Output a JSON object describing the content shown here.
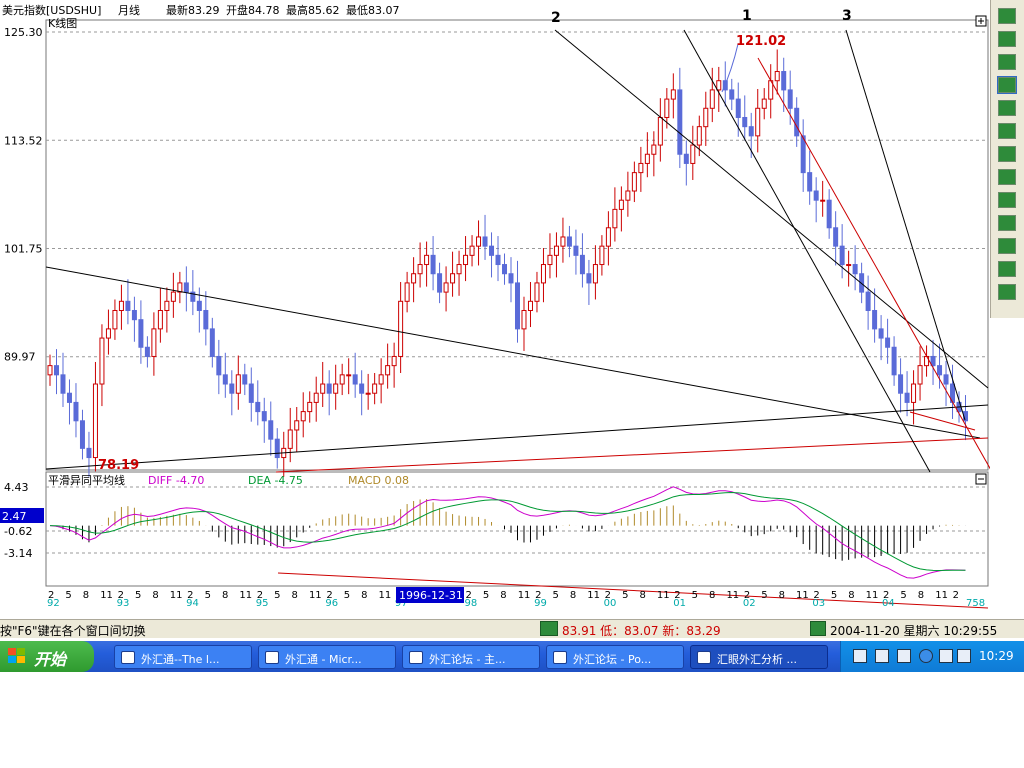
{
  "titlebar": {
    "symbol": "美元指数[USDSHU]",
    "period": "月线",
    "latest": "最新83.29",
    "open": "开盘84.78",
    "high": "最高85.62",
    "low": "最低83.07"
  },
  "main_panel": {
    "label": "K线图",
    "expand_icon": "plus-box-icon",
    "trendline_labels": [
      "2",
      "1",
      "3"
    ],
    "peak_label": "121.02",
    "trough_label": "78.19"
  },
  "macd_panel": {
    "title": "平滑异同平均线",
    "diff": "DIFF -4.70",
    "dea": "DEA -4.75",
    "macd": "MACD 0.08",
    "collapse_icon": "minus-box-icon",
    "cursor_value": "2.47"
  },
  "xaxis": {
    "month_ticks": [
      "2",
      "5",
      "8",
      "11",
      "2",
      "5",
      "8",
      "11",
      "2",
      "5",
      "8",
      "11",
      "2",
      "5",
      "8",
      "11",
      "2",
      "5",
      "8",
      "11",
      "2",
      "5",
      "8",
      "11",
      "2",
      "5",
      "8",
      "11",
      "2",
      "5",
      "8",
      "11",
      "2",
      "5",
      "8",
      "11",
      "2",
      "5",
      "8",
      "11",
      "2",
      "5",
      "8",
      "11",
      "2",
      "5",
      "8",
      "11",
      "2",
      "5",
      "8",
      "11",
      "2"
    ],
    "year_labels": [
      "92",
      "93",
      "94",
      "95",
      "96",
      "97",
      "98",
      "99",
      "00",
      "01",
      "02",
      "03",
      "04"
    ],
    "cursor_date": "1996-12-31",
    "tail_label": "758"
  },
  "colors": {
    "up_candle": "#cc0000",
    "down_candle": "#5a6bd8",
    "diff_line": "#cc00cc",
    "dea_line": "#009933",
    "macd_bar": "#b08a2a",
    "grid": "#9a9a9a",
    "year_label": "#00aaaa"
  },
  "toolbar": {
    "icons": [
      "cursor-icon",
      "edit-icon",
      "line-tool-icon",
      "trendline-tool-icon",
      "ray-tool-icon",
      "channel-tool-icon",
      "parallel-tool-icon",
      "fibonacci-icon",
      "grid-tool-icon",
      "cycle-tool-icon",
      "speed-line-icon",
      "text-tool-icon",
      "delete-tool-icon"
    ]
  },
  "statusbar": {
    "hint": "按\"F6\"键在各个窗口间切换",
    "quote": "83.91 低：83.07 新：83.29",
    "datetime": "2004-11-20 星期六 10:29:55"
  },
  "taskbar": {
    "start_label": "开始",
    "tasks": [
      {
        "label": "外汇通--The l...",
        "active": false
      },
      {
        "label": "外汇通 - Micr...",
        "active": false
      },
      {
        "label": "外汇论坛 - 主...",
        "active": false
      },
      {
        "label": "外汇论坛 - Po...",
        "active": false
      },
      {
        "label": "汇眼外汇分析 ...",
        "active": true
      }
    ],
    "clock": "10:29"
  },
  "chart_data": [
    {
      "type": "candlestick",
      "title": "K线图",
      "yticks": [
        125.3,
        113.52,
        101.75,
        89.97
      ],
      "ylim": [
        78.19,
        125.3
      ],
      "x": "monthly 1992-01 to 2004-11",
      "closes_approx": [
        89,
        88,
        86,
        85,
        83,
        80,
        79,
        87,
        92,
        93,
        95,
        96,
        95,
        94,
        91,
        90,
        93,
        95,
        96,
        97,
        98,
        97,
        96,
        95,
        93,
        90,
        88,
        87,
        86,
        88,
        87,
        85,
        84,
        83,
        81,
        79,
        80,
        82,
        83,
        84,
        85,
        86,
        87,
        86,
        87,
        88,
        88,
        87,
        86,
        86,
        87,
        88,
        89,
        90,
        96,
        98,
        99,
        100,
        101,
        99,
        97,
        98,
        99,
        100,
        101,
        102,
        103,
        102,
        101,
        100,
        99,
        98,
        93,
        95,
        96,
        98,
        100,
        101,
        102,
        103,
        102,
        101,
        99,
        98,
        100,
        102,
        104,
        106,
        107,
        108,
        110,
        111,
        112,
        113,
        116,
        118,
        119,
        112,
        111,
        113,
        115,
        117,
        119,
        120,
        119,
        118,
        116,
        115,
        114,
        117,
        118,
        120,
        121,
        119,
        117,
        114,
        110,
        108,
        107,
        107,
        104,
        102,
        100,
        100,
        99,
        97,
        95,
        93,
        92,
        91,
        88,
        86,
        85,
        87,
        89,
        90,
        89,
        88,
        87,
        85,
        84,
        83
      ],
      "annotations": [
        {
          "text": "121.02",
          "kind": "high"
        },
        {
          "text": "78.19",
          "kind": "low"
        },
        {
          "text": "1",
          "kind": "trendline-label"
        },
        {
          "text": "2",
          "kind": "trendline-label"
        },
        {
          "text": "3",
          "kind": "trendline-label"
        }
      ]
    },
    {
      "type": "line",
      "title": "平滑异同平均线",
      "yticks": [
        4.43,
        -0.62,
        -3.14
      ],
      "series": [
        {
          "name": "DIFF",
          "latest": -4.7
        },
        {
          "name": "DEA",
          "latest": -4.75
        },
        {
          "name": "MACD",
          "latest": 0.08
        }
      ]
    }
  ]
}
